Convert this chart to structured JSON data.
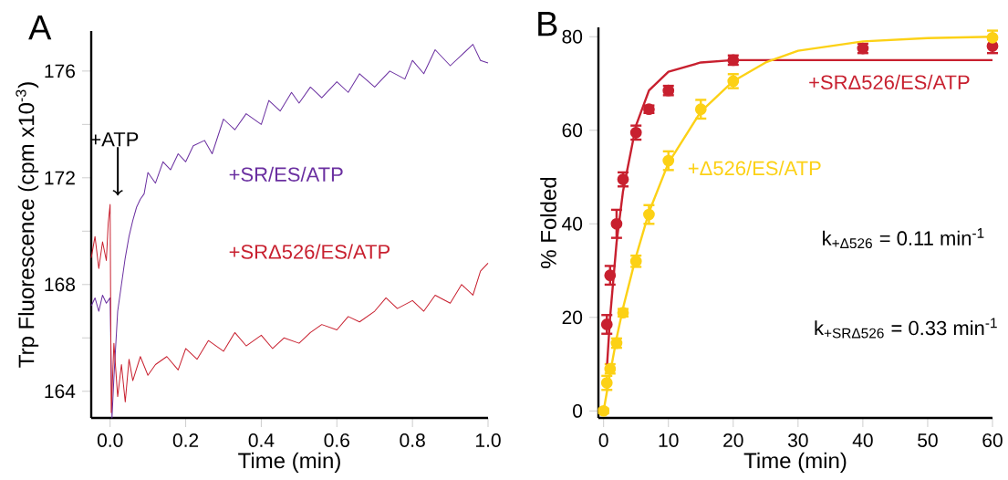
{
  "chart_data": [
    {
      "type": "line",
      "title": "A",
      "xlabel": "Time (min)",
      "ylabel": "Trp Fluorescence (cpm x10$^{-3}$)",
      "xlim": [
        -0.05,
        1.0
      ],
      "ylim": [
        163,
        177.5
      ],
      "xticks": [
        {
          "value": 0.0,
          "label": "0.0"
        },
        0.2,
        0.4,
        0.6,
        0.8,
        {
          "value": 1.0,
          "label": "1.0"
        }
      ],
      "yticks": [
        164,
        {
          "value": 166,
          "label": null
        },
        168,
        {
          "value": 170,
          "label": null
        },
        172,
        {
          "value": 174,
          "label": null
        },
        176
      ],
      "annotations": [
        "+ATP"
      ],
      "series": [
        {
          "name": "+SR/ES/ATP",
          "color": "#6a2fa0",
          "x": [
            -0.05,
            -0.04,
            -0.03,
            -0.02,
            -0.01,
            0.0,
            0.005,
            0.01,
            0.02,
            0.03,
            0.04,
            0.05,
            0.06,
            0.07,
            0.08,
            0.09,
            0.1,
            0.12,
            0.14,
            0.16,
            0.18,
            0.2,
            0.22,
            0.25,
            0.27,
            0.3,
            0.33,
            0.36,
            0.4,
            0.42,
            0.45,
            0.48,
            0.5,
            0.53,
            0.56,
            0.6,
            0.63,
            0.66,
            0.7,
            0.74,
            0.78,
            0.8,
            0.83,
            0.86,
            0.9,
            0.93,
            0.96,
            0.98,
            1.0
          ],
          "values": [
            167.2,
            167.5,
            167.0,
            167.6,
            167.3,
            167.5,
            163.0,
            164.5,
            167.0,
            168.0,
            169.0,
            169.8,
            170.4,
            170.9,
            171.2,
            171.4,
            172.2,
            171.8,
            172.6,
            172.3,
            172.9,
            172.6,
            173.2,
            173.4,
            172.9,
            174.2,
            173.8,
            174.4,
            174.0,
            174.9,
            174.5,
            175.2,
            174.8,
            175.4,
            175.0,
            175.6,
            175.2,
            175.9,
            175.4,
            176.0,
            175.7,
            176.4,
            175.9,
            176.8,
            176.2,
            176.6,
            177.0,
            176.4,
            176.3
          ]
        },
        {
          "name": "+SRΔ526/ES/ATP",
          "color": "#c8202f",
          "x": [
            -0.05,
            -0.04,
            -0.03,
            -0.02,
            -0.01,
            -0.005,
            0.0,
            0.003,
            0.01,
            0.02,
            0.03,
            0.04,
            0.05,
            0.06,
            0.08,
            0.1,
            0.12,
            0.15,
            0.18,
            0.2,
            0.23,
            0.26,
            0.3,
            0.33,
            0.36,
            0.4,
            0.43,
            0.46,
            0.5,
            0.53,
            0.56,
            0.6,
            0.63,
            0.66,
            0.7,
            0.73,
            0.76,
            0.8,
            0.83,
            0.86,
            0.9,
            0.93,
            0.96,
            0.98,
            1.0
          ],
          "values": [
            169.0,
            169.8,
            168.6,
            169.6,
            168.9,
            170.3,
            171.0,
            163.2,
            165.8,
            163.8,
            165.0,
            163.6,
            165.2,
            164.4,
            165.3,
            164.6,
            165.0,
            165.3,
            164.8,
            165.6,
            165.2,
            165.9,
            165.5,
            166.2,
            165.7,
            166.1,
            165.6,
            166.0,
            165.8,
            166.2,
            166.5,
            166.3,
            166.8,
            166.6,
            167.0,
            167.5,
            167.1,
            167.4,
            167.0,
            167.6,
            167.3,
            168.0,
            167.6,
            168.5,
            168.8
          ]
        }
      ]
    },
    {
      "type": "scatter",
      "title": "B",
      "xlabel": "Time (min)",
      "ylabel": "% Folded",
      "xlim": [
        -0.8,
        60
      ],
      "ylim": [
        -1.5,
        82
      ],
      "xticks": [
        0,
        10,
        20,
        30,
        40,
        50,
        60
      ],
      "yticks": [
        0,
        20,
        40,
        60,
        80
      ],
      "annotations": [
        "k$_{+Δ526}$ = 0.11 min$^{-1}$",
        "k$_{+SRΔ526}$ = 0.33 min$^{-1}$"
      ],
      "series": [
        {
          "marker": "circle",
          "color": "#c8202f",
          "x": [
            0.5,
            1,
            2,
            3,
            5,
            7,
            10,
            20,
            40,
            60
          ],
          "values": [
            18.5,
            29,
            40,
            49.5,
            59.5,
            64.5,
            68.5,
            75,
            77.5,
            78
          ],
          "errors": [
            2,
            2,
            3,
            1.5,
            1.5,
            0.8,
            1,
            1,
            1,
            1.5
          ]
        },
        {
          "marker": "circle",
          "color": "#fcd116",
          "x": [
            0,
            0.5,
            1,
            2,
            3,
            5,
            7,
            10,
            15,
            20,
            60
          ],
          "values": [
            0,
            6,
            9,
            14.5,
            21,
            32,
            42,
            53.5,
            64.5,
            70.5,
            79.8
          ],
          "errors": [
            0.5,
            1.5,
            1,
            1,
            0.8,
            1.2,
            2,
            2,
            2,
            1.5,
            1.5
          ]
        },
        {
          "type": "line",
          "marker": "none",
          "name": "+SRΔ526/ES/ATP",
          "color": "#c8202f",
          "x": [
            0.5,
            1,
            2,
            3,
            5,
            7,
            10,
            15,
            20,
            30,
            60
          ],
          "values": [
            9,
            20,
            36,
            47,
            61,
            68.5,
            72.5,
            74.5,
            75,
            75,
            75
          ]
        },
        {
          "type": "line",
          "marker": "none",
          "name": "+Δ526/ES/ATP",
          "color": "#fcd116",
          "x": [
            0,
            1,
            2,
            3,
            5,
            7,
            10,
            15,
            20,
            25,
            30,
            40,
            50,
            60
          ],
          "values": [
            0,
            8,
            15.5,
            22,
            33,
            42.5,
            53,
            64,
            70.5,
            74.5,
            77,
            79,
            79.7,
            80
          ]
        }
      ]
    }
  ]
}
